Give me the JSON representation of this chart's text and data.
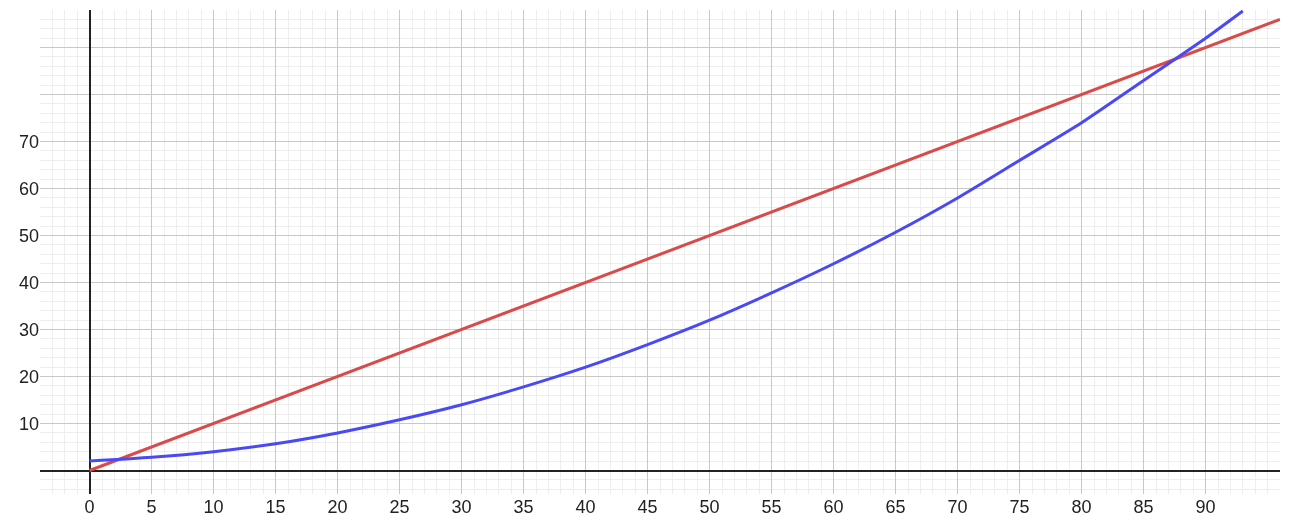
{
  "chart_data": {
    "type": "line",
    "xlim": [
      -4,
      96
    ],
    "ylim": [
      -5,
      98
    ],
    "xticks": [
      {
        "value": 0,
        "label": "0"
      },
      5,
      10,
      15,
      20,
      25,
      30,
      35,
      40,
      45,
      50,
      55,
      60,
      65,
      70,
      75,
      80,
      85,
      90
    ],
    "yticks": [
      {
        "value": 0,
        "label": null
      },
      10,
      20,
      30,
      40,
      50,
      60,
      70,
      {
        "value": 80,
        "label": null
      },
      {
        "value": 90,
        "label": null
      }
    ],
    "grid": true,
    "marker": "none",
    "line_style": "solid",
    "series": [
      {
        "color": "#d94a4a",
        "x": [
          0,
          96
        ],
        "values": [
          0,
          96
        ]
      },
      {
        "color": "#4a4af5",
        "x": [
          0,
          5,
          10,
          15,
          20,
          25,
          30,
          35,
          40,
          45,
          50,
          55,
          60,
          65,
          70,
          75,
          80,
          85,
          90,
          93
        ],
        "values": [
          2,
          2.8,
          4,
          5.7,
          8,
          10.8,
          14,
          17.8,
          22,
          26.8,
          32,
          37.8,
          44,
          50.7,
          58,
          66,
          74,
          83,
          92,
          97.8
        ]
      }
    ]
  }
}
